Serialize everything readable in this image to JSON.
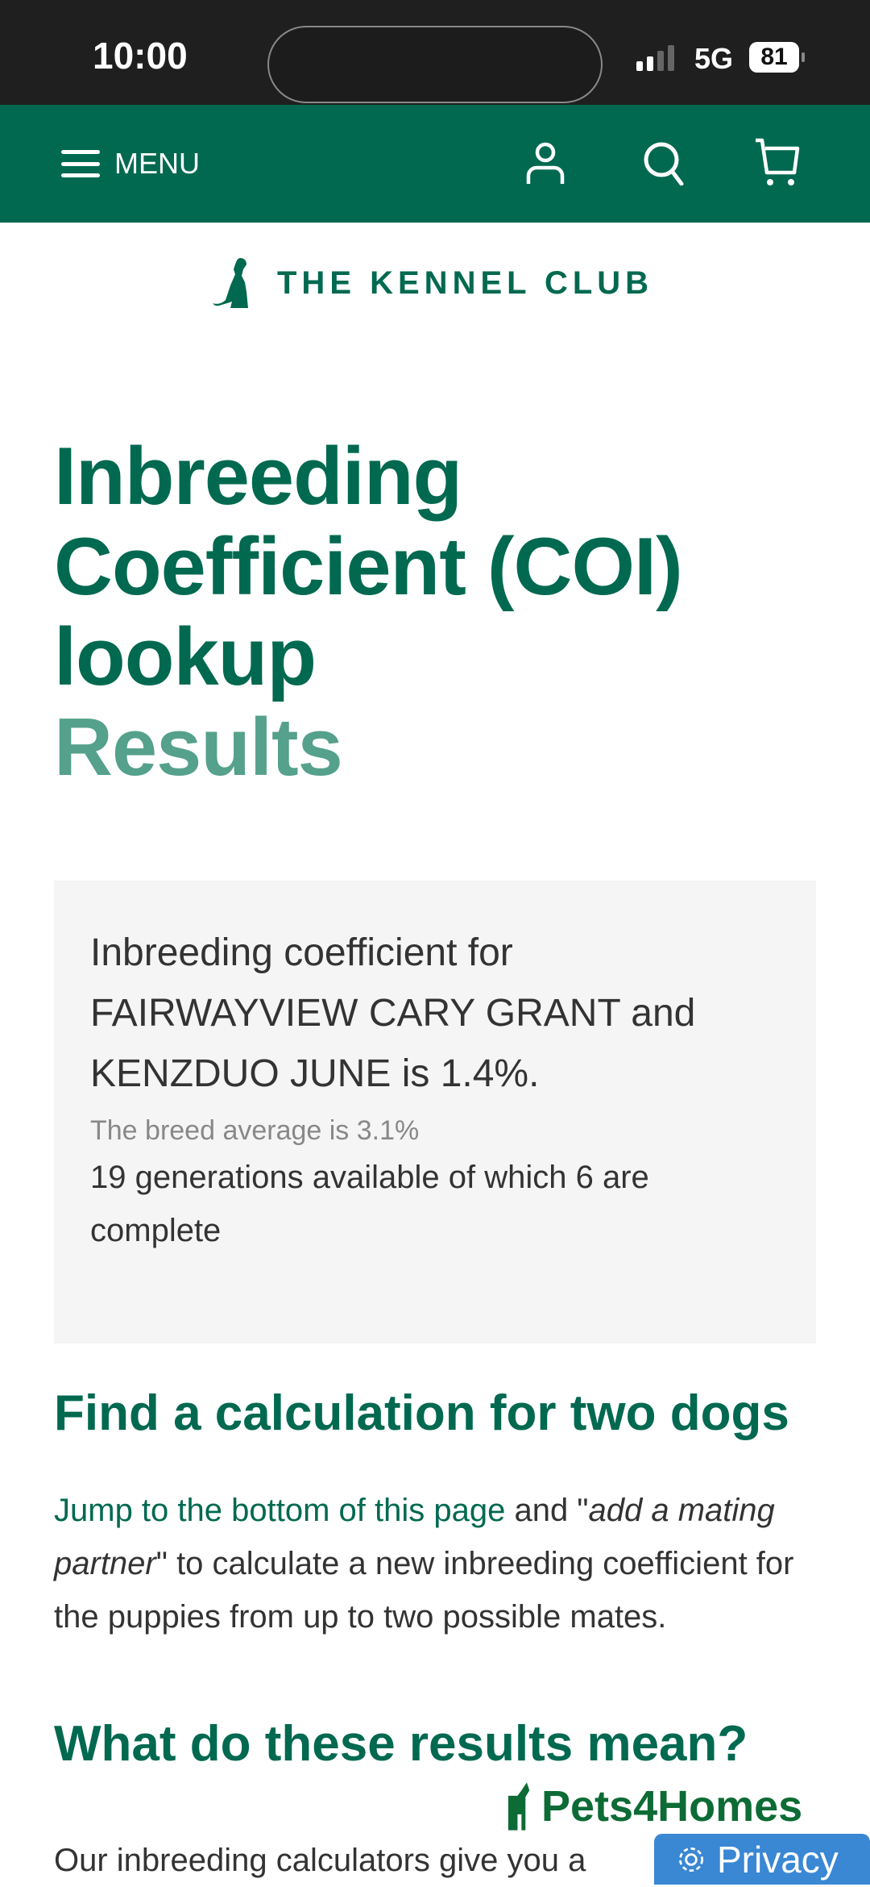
{
  "status_bar": {
    "time": "10:00",
    "network": "5G",
    "battery": "81"
  },
  "header": {
    "menu_label": "MENU",
    "icons": [
      "account-icon",
      "search-icon",
      "cart-icon"
    ]
  },
  "logo": {
    "text": "THE KENNEL CLUB"
  },
  "title": {
    "line": "Inbreeding Coefficient (COI) lookup",
    "subtitle": "Results"
  },
  "result": {
    "summary": "Inbreeding coefficient for FAIRWAYVIEW CARY GRANT and KENZDUO JUNE is 1.4%.",
    "breed_average": "The breed average is 3.1%",
    "generations": "19 generations available of which 6 are complete"
  },
  "section1": {
    "heading": "Find a calculation for two dogs",
    "link": "Jump to the bottom of this page",
    "text_a": " and \"",
    "em": "add a mating partner",
    "text_b": "\" to calculate a new inbreeding coefficient for the puppies from up to two possible mates."
  },
  "section2": {
    "heading": "What do these results mean?",
    "text": "Our inbreeding calculators give you a"
  },
  "overlay": {
    "watermark": "Pets4Homes",
    "privacy_label": "Privacy"
  },
  "colors": {
    "brand": "#006950",
    "accent_light": "#55a18b",
    "privacy": "#3a87d4"
  }
}
